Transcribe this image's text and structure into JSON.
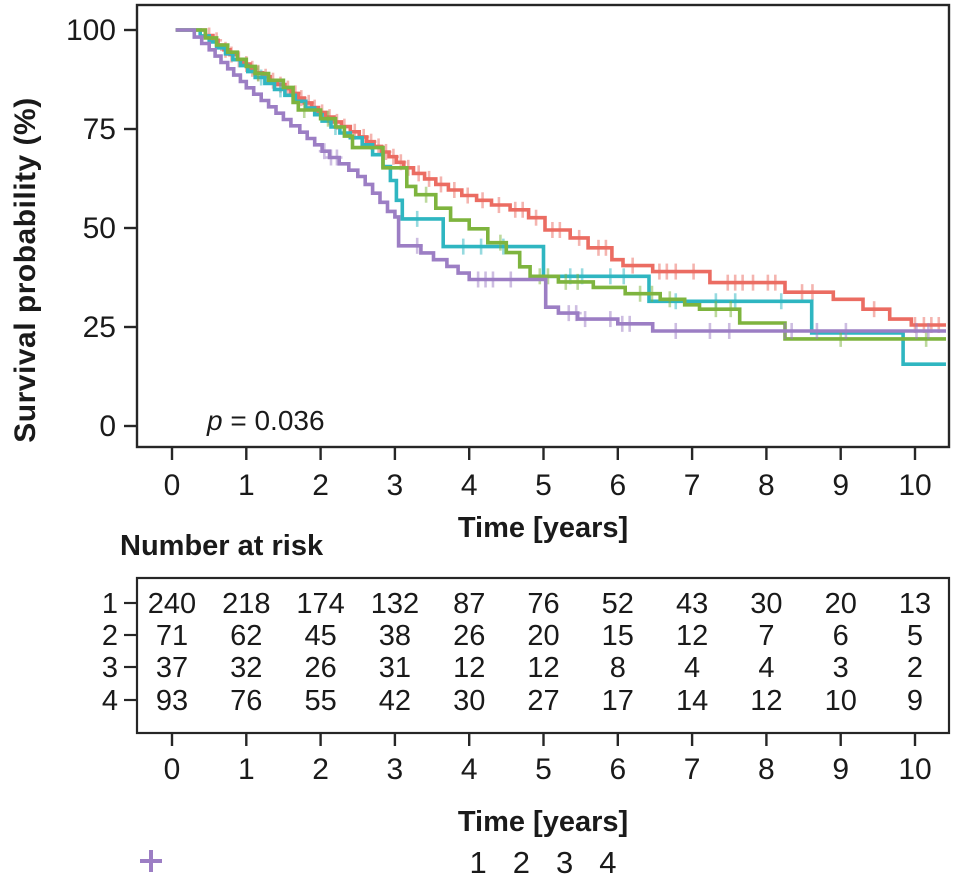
{
  "figure": {
    "y_axis_title": "Survival probability (%)",
    "x_axis_title": "Time [years]",
    "risk_table_title": "Number at risk",
    "p_value": {
      "symbol": "p",
      "rest": " = 0.036"
    }
  },
  "chart_data": {
    "type": "line",
    "subtype": "kaplan-meier-step",
    "title": "",
    "xlabel": "Time [years]",
    "ylabel": "Survival probability (%)",
    "xlim": [
      0,
      10.45
    ],
    "ylim": [
      0,
      100
    ],
    "x_ticks": [
      0,
      1,
      2,
      3,
      4,
      5,
      6,
      7,
      8,
      9,
      10
    ],
    "y_ticks": [
      100,
      75,
      50,
      25,
      0
    ],
    "grid": false,
    "legend_position": "bottom",
    "p_value_text": "p = 0.036",
    "axis_color": "#262626",
    "series": [
      {
        "name": "1",
        "color": "#EB6C62",
        "steps": [
          [
            0.05,
            100
          ],
          [
            0.45,
            98.6
          ],
          [
            0.55,
            97.4
          ],
          [
            0.62,
            96.2
          ],
          [
            0.7,
            95.0
          ],
          [
            0.78,
            93.8
          ],
          [
            0.88,
            92.6
          ],
          [
            0.96,
            91.4
          ],
          [
            1.05,
            90.2
          ],
          [
            1.12,
            89.2
          ],
          [
            1.22,
            88.2
          ],
          [
            1.32,
            87.2
          ],
          [
            1.42,
            86.2
          ],
          [
            1.52,
            85.2
          ],
          [
            1.6,
            84.0
          ],
          [
            1.7,
            82.8
          ],
          [
            1.78,
            81.6
          ],
          [
            1.88,
            80.4
          ],
          [
            1.97,
            79.2
          ],
          [
            2.07,
            78.0
          ],
          [
            2.18,
            76.8
          ],
          [
            2.28,
            75.6
          ],
          [
            2.4,
            74.3
          ],
          [
            2.52,
            73.0
          ],
          [
            2.62,
            71.8
          ],
          [
            2.72,
            70.6
          ],
          [
            2.82,
            69.2
          ],
          [
            2.92,
            68.0
          ],
          [
            3.02,
            66.6
          ],
          [
            3.12,
            65.2
          ],
          [
            3.25,
            63.8
          ],
          [
            3.4,
            62.4
          ],
          [
            3.55,
            61.0
          ],
          [
            3.72,
            59.6
          ],
          [
            3.9,
            58.2
          ],
          [
            4.1,
            57.0
          ],
          [
            4.3,
            55.8
          ],
          [
            4.55,
            54.6
          ],
          [
            4.8,
            52.6
          ],
          [
            5.02,
            49.5
          ],
          [
            5.36,
            47.5
          ],
          [
            5.6,
            45.0
          ],
          [
            5.92,
            42.0
          ],
          [
            6.07,
            40.5
          ],
          [
            6.47,
            39.0
          ],
          [
            7.24,
            36.2
          ],
          [
            8.25,
            33.8
          ],
          [
            8.9,
            32.0
          ],
          [
            9.3,
            29.5
          ],
          [
            9.66,
            27.0
          ],
          [
            9.95,
            25.5
          ]
        ],
        "censor_times": [
          0.5,
          0.6,
          0.72,
          0.8,
          0.9,
          1.0,
          1.08,
          1.16,
          1.26,
          1.36,
          1.46,
          1.56,
          1.66,
          1.74,
          1.84,
          1.92,
          2.02,
          2.12,
          2.22,
          2.32,
          2.46,
          2.58,
          2.68,
          2.78,
          2.88,
          2.98,
          3.08,
          3.18,
          3.32,
          3.46,
          3.62,
          3.8,
          3.98,
          4.18,
          4.4,
          4.62,
          4.72,
          4.9,
          5.12,
          5.22,
          5.48,
          5.74,
          5.84,
          6.2,
          6.56,
          6.66,
          6.78,
          7.02,
          7.48,
          7.58,
          7.68,
          7.82,
          8.02,
          8.12,
          8.48,
          8.62,
          9.45,
          10.0,
          10.12,
          10.22,
          10.32
        ]
      },
      {
        "name": "2",
        "color": "#2FB6C1",
        "steps": [
          [
            0.05,
            100
          ],
          [
            0.38,
            98.5
          ],
          [
            0.5,
            97.0
          ],
          [
            0.6,
            95.5
          ],
          [
            0.72,
            94.0
          ],
          [
            0.82,
            92.5
          ],
          [
            0.92,
            91.0
          ],
          [
            1.02,
            89.5
          ],
          [
            1.12,
            88.0
          ],
          [
            1.25,
            86.5
          ],
          [
            1.38,
            85.0
          ],
          [
            1.52,
            83.5
          ],
          [
            1.66,
            82.0
          ],
          [
            1.8,
            80.3
          ],
          [
            1.92,
            78.6
          ],
          [
            2.02,
            77.0
          ],
          [
            2.14,
            75.5
          ],
          [
            2.26,
            74.0
          ],
          [
            2.4,
            72.8
          ],
          [
            2.56,
            71.0
          ],
          [
            2.7,
            68.5
          ],
          [
            2.84,
            65.5
          ],
          [
            2.94,
            62.0
          ],
          [
            3.02,
            57.0
          ],
          [
            3.1,
            52.3
          ],
          [
            3.65,
            45.3
          ],
          [
            5.0,
            37.8
          ],
          [
            6.42,
            31.5
          ],
          [
            8.61,
            23.5
          ],
          [
            9.84,
            15.6
          ]
        ],
        "censor_times": [
          1.2,
          1.46,
          2.2,
          3.3,
          3.92,
          4.16,
          4.46,
          5.36,
          5.52,
          5.9,
          6.08,
          6.78,
          7.32,
          7.58,
          8.2
        ]
      },
      {
        "name": "3",
        "color": "#7EB43E",
        "steps": [
          [
            0.05,
            100
          ],
          [
            0.45,
            98.0
          ],
          [
            0.6,
            96.2
          ],
          [
            0.75,
            94.4
          ],
          [
            0.88,
            92.6
          ],
          [
            1.0,
            90.8
          ],
          [
            1.12,
            89.0
          ],
          [
            1.3,
            87.3
          ],
          [
            1.5,
            85.5
          ],
          [
            1.63,
            81.7
          ],
          [
            1.7,
            79.8
          ],
          [
            2.0,
            77.6
          ],
          [
            2.2,
            75.5
          ],
          [
            2.32,
            73.2
          ],
          [
            2.43,
            70.3
          ],
          [
            2.84,
            65.2
          ],
          [
            3.16,
            60.5
          ],
          [
            3.28,
            58.4
          ],
          [
            3.55,
            55.0
          ],
          [
            3.75,
            52.0
          ],
          [
            4.0,
            49.8
          ],
          [
            4.25,
            46.3
          ],
          [
            4.5,
            43.8
          ],
          [
            4.68,
            40.2
          ],
          [
            4.82,
            37.8
          ],
          [
            5.2,
            36.4
          ],
          [
            5.67,
            35.0
          ],
          [
            6.1,
            33.4
          ],
          [
            6.57,
            32.0
          ],
          [
            6.9,
            30.6
          ],
          [
            7.1,
            29.5
          ],
          [
            7.64,
            26.0
          ],
          [
            8.25,
            22.0
          ]
        ],
        "censor_times": [
          1.16,
          1.78,
          2.1,
          3.42,
          4.42,
          4.95,
          5.06,
          5.3,
          5.46,
          6.3,
          6.46,
          6.7,
          7.32,
          7.52,
          9.0,
          10.15
        ]
      },
      {
        "name": "4",
        "color": "#9C7EC4",
        "steps": [
          [
            0.05,
            100
          ],
          [
            0.3,
            98.2
          ],
          [
            0.4,
            96.6
          ],
          [
            0.5,
            95.0
          ],
          [
            0.58,
            93.4
          ],
          [
            0.66,
            91.8
          ],
          [
            0.75,
            90.2
          ],
          [
            0.83,
            88.6
          ],
          [
            0.92,
            87.0
          ],
          [
            1.0,
            85.4
          ],
          [
            1.1,
            83.8
          ],
          [
            1.2,
            82.2
          ],
          [
            1.3,
            80.6
          ],
          [
            1.4,
            79.0
          ],
          [
            1.5,
            77.4
          ],
          [
            1.6,
            75.8
          ],
          [
            1.72,
            74.2
          ],
          [
            1.82,
            72.6
          ],
          [
            1.92,
            71.0
          ],
          [
            2.02,
            69.4
          ],
          [
            2.12,
            67.8
          ],
          [
            2.25,
            66.2
          ],
          [
            2.38,
            64.6
          ],
          [
            2.5,
            63.0
          ],
          [
            2.6,
            61.0
          ],
          [
            2.7,
            58.8
          ],
          [
            2.8,
            56.5
          ],
          [
            2.9,
            54.2
          ],
          [
            3.0,
            52.8
          ],
          [
            3.05,
            45.5
          ],
          [
            3.35,
            43.7
          ],
          [
            3.52,
            42.0
          ],
          [
            3.7,
            40.3
          ],
          [
            3.85,
            38.6
          ],
          [
            4.0,
            37.0
          ],
          [
            5.03,
            30.0
          ],
          [
            5.2,
            28.5
          ],
          [
            5.46,
            27.0
          ],
          [
            6.0,
            25.8
          ],
          [
            6.47,
            24.0
          ]
        ],
        "censor_times": [
          2.05,
          2.14,
          2.22,
          3.3,
          4.12,
          4.22,
          4.32,
          4.56,
          5.34,
          5.44,
          5.56,
          5.9,
          6.06,
          6.16,
          6.78,
          7.24,
          7.5,
          8.25,
          8.34,
          8.68,
          9.07,
          10.02,
          10.18
        ]
      }
    ],
    "risk_table": {
      "title": "Number at risk",
      "time_points": [
        0,
        1,
        2,
        3,
        4,
        5,
        6,
        7,
        8,
        9,
        10
      ],
      "rows": [
        {
          "group": "1",
          "counts": [
            240,
            218,
            174,
            132,
            87,
            76,
            52,
            43,
            30,
            20,
            13
          ]
        },
        {
          "group": "2",
          "counts": [
            71,
            62,
            45,
            38,
            26,
            20,
            15,
            12,
            7,
            6,
            5
          ]
        },
        {
          "group": "3",
          "counts": [
            37,
            32,
            26,
            31,
            12,
            12,
            8,
            4,
            4,
            3,
            2
          ]
        },
        {
          "group": "4",
          "counts": [
            93,
            76,
            55,
            42,
            30,
            27,
            17,
            14,
            12,
            10,
            9
          ]
        }
      ]
    },
    "legend": [
      {
        "label": "1",
        "color": "#EB6C62"
      },
      {
        "label": "2",
        "color": "#2FB6C1"
      },
      {
        "label": "3",
        "color": "#7EB43E"
      },
      {
        "label": "4",
        "color": "#9C7EC4"
      }
    ]
  }
}
